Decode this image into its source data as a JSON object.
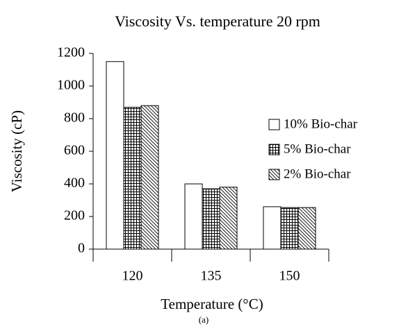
{
  "chart_data": {
    "type": "bar",
    "title": "Viscosity Vs. temperature 20 rpm",
    "x_label": "Temperature (°C)",
    "y_label": "Viscosity (cP)",
    "caption": "(a)",
    "categories": [
      "120",
      "135",
      "150"
    ],
    "series": [
      {
        "name": "10% Bio-char",
        "color": "#ffffff",
        "pattern": "none",
        "values": [
          1150,
          400,
          260
        ]
      },
      {
        "name": "5% Bio-char",
        "color": "#ffffff",
        "pattern": "grid",
        "values": [
          870,
          370,
          255
        ]
      },
      {
        "name": "2% Bio-char",
        "color": "#ffffff",
        "pattern": "diagonal",
        "values": [
          880,
          380,
          255
        ]
      }
    ],
    "ylim": [
      0,
      1200
    ],
    "yticks": [
      0,
      200,
      400,
      600,
      800,
      1000,
      1200
    ],
    "grid": false,
    "legend": "right"
  }
}
